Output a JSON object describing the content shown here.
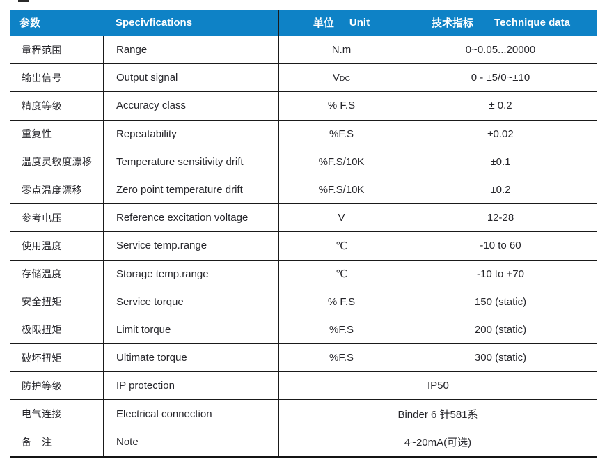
{
  "table": {
    "header": {
      "param_zh": "参数",
      "spec_en": "Specivfications",
      "unit_zh": "单位",
      "unit_en": "Unit",
      "tech_zh": "技术指标",
      "tech_en": "Technique data"
    },
    "rows": [
      {
        "param_zh": "量程范围",
        "spec_en": "Range",
        "unit": "N.m",
        "value": "0~0.05...20000"
      },
      {
        "param_zh": "输出信号",
        "spec_en": "Output signal",
        "unit": "V",
        "unit_small": "DC",
        "value": "0 - ±5/0~±10"
      },
      {
        "param_zh": "精度等级",
        "spec_en": "Accuracy class",
        "unit": "% F.S",
        "value": "± 0.2"
      },
      {
        "param_zh": "重复性",
        "spec_en": "Repeatability",
        "unit": "%F.S",
        "value": "±0.02"
      },
      {
        "param_zh": "温度灵敏度漂移",
        "spec_en": "Temperature sensitivity drift",
        "unit": "%F.S/10K",
        "value": "±0.1"
      },
      {
        "param_zh": "零点温度漂移",
        "spec_en": "Zero point temperature drift",
        "unit": "%F.S/10K",
        "value": "±0.2"
      },
      {
        "param_zh": "参考电压",
        "spec_en": "Reference excitation voltage",
        "unit": "V",
        "value": "12-28"
      },
      {
        "param_zh": "使用温度",
        "spec_en": "Service temp.range",
        "unit": "℃",
        "value": "-10 to 60"
      },
      {
        "param_zh": "存储温度",
        "spec_en": "Storage temp.range",
        "unit": "℃",
        "value": "-10 to +70"
      },
      {
        "param_zh": "安全扭矩",
        "spec_en": "Service torque",
        "unit": "% F.S",
        "value": "150 (static)"
      },
      {
        "param_zh": "极限扭矩",
        "spec_en": "Limit torque",
        "unit": "%F.S",
        "value": "200 (static)"
      },
      {
        "param_zh": "破坏扭矩",
        "spec_en": "Ultimate torque",
        "unit": "%F.S",
        "value": "300 (static)"
      },
      {
        "param_zh": "防护等级",
        "spec_en": "IP protection",
        "unit": "",
        "value": "IP50",
        "value_align": "left"
      },
      {
        "param_zh": "电气连接",
        "spec_en": "Electrical connection",
        "merged_value": "Binder 6 针581系"
      },
      {
        "param_zh": "备　注",
        "spec_en": "Note",
        "merged_value": "4~20mA(可选)"
      }
    ],
    "colors": {
      "header_bg": "#0e82c6",
      "header_text": "#ffffff",
      "body_text": "#26262b",
      "border": "#1a1a1a"
    }
  }
}
